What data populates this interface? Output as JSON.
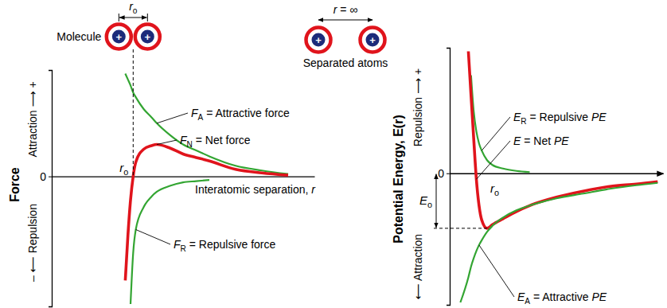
{
  "chart_data": [
    {
      "type": "line",
      "x_label": "Interatomic separation, r",
      "y_label": "Force",
      "y_direction_labels": {
        "positive": "Attraction ⟶ +",
        "negative": "– ⟵ Repulsion"
      },
      "xlim": [
        0,
        10
      ],
      "ylim": [
        -11,
        9
      ],
      "xticks": [],
      "yticks": [
        0
      ],
      "tick_labels": "y",
      "grid": false,
      "x": [
        2.8,
        2.9,
        3.0,
        3.1,
        3.2,
        3.5,
        3.8,
        4.0,
        4.5,
        5.0,
        5.5,
        6.0,
        7.0,
        8.0,
        9.0
      ],
      "series": [
        {
          "name": "FA = Attractive force",
          "color": "#33a532",
          "values": [
            8.7,
            8.2,
            7.7,
            7.1,
            6.7,
            5.7,
            5.0,
            4.5,
            3.5,
            2.7,
            2.2,
            1.7,
            0.9,
            0.5,
            0.2
          ]
        },
        {
          "name": "FN = Net force",
          "color": "#e0141c",
          "values": [
            -8.8,
            -5.0,
            -2.0,
            0.0,
            1.2,
            2.3,
            2.6,
            2.7,
            2.4,
            1.9,
            1.6,
            1.3,
            0.6,
            0.3,
            0.1
          ]
        },
        {
          "name": "FR = Repulsive force",
          "color": "#33a532",
          "values": [
            null,
            null,
            -10.8,
            -6.5,
            -4.5,
            -2.6,
            -1.7,
            -1.3,
            -0.8,
            -0.5,
            -0.4,
            -0.3,
            null,
            null,
            null
          ]
        }
      ],
      "equilibrium": {
        "label": "ro",
        "x": 3.1
      },
      "illustration": {
        "molecule": "Molecule",
        "spacing_label": "ro",
        "separated": "Separated atoms",
        "separation_label": "r = ∞",
        "atom_charge": "+"
      }
    },
    {
      "type": "line",
      "y_label": "Potential Energy, E(r)",
      "y_direction_labels": {
        "positive": "Repulsion ⟶ +",
        "negative": "⟵ Attraction"
      },
      "xlim": [
        0,
        8
      ],
      "ylim": [
        -11,
        10.5
      ],
      "xticks": [],
      "yticks": [
        0
      ],
      "tick_labels": "y",
      "grid": false,
      "x": [
        0.4,
        0.7,
        0.8,
        0.9,
        1.0,
        1.1,
        1.2,
        1.4,
        1.6,
        2.0,
        2.5,
        3.0,
        4.0,
        5.0,
        6.0,
        7.0,
        7.8
      ],
      "series": [
        {
          "name": "ER = Repulsive PE",
          "color": "#33a532",
          "values": [
            null,
            null,
            8.2,
            5.2,
            3.5,
            2.5,
            1.9,
            1.1,
            0.7,
            0.4,
            0.2,
            0.1,
            null,
            null,
            null,
            null,
            null
          ]
        },
        {
          "name": "E = Net PE",
          "color": "#e0141c",
          "values": [
            null,
            10.2,
            6.5,
            2.9,
            -0.5,
            -2.7,
            -3.9,
            -4.6,
            -4.3,
            -3.8,
            -3.2,
            -2.7,
            -2.0,
            -1.5,
            -1.1,
            -0.9,
            -0.7
          ]
        },
        {
          "name": "EA = Attractive PE",
          "color": "#33a532",
          "values": [
            -10.8,
            -8.7,
            -7.8,
            -7.1,
            -6.5,
            -6.0,
            -5.6,
            -4.9,
            -4.4,
            -3.7,
            -3.1,
            -2.7,
            -2.1,
            -1.7,
            -1.3,
            -1.0,
            -0.8
          ]
        }
      ],
      "equilibrium": {
        "label": "ro",
        "x": 1.4
      },
      "well_depth": {
        "label": "Eo",
        "value": -4.6
      }
    }
  ]
}
